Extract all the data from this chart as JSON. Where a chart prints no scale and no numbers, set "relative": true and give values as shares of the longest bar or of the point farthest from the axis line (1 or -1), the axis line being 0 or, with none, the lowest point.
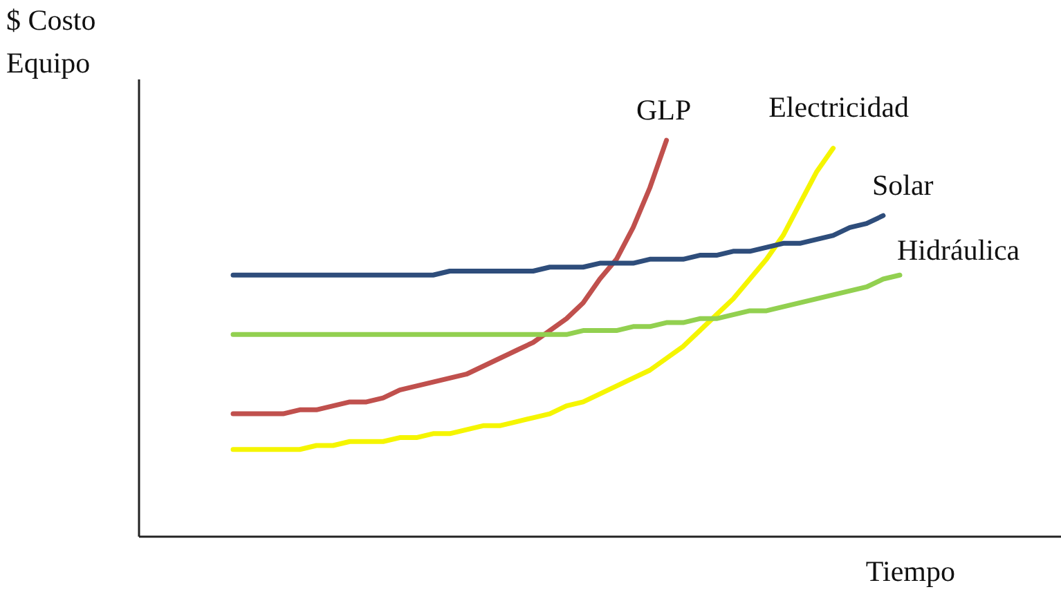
{
  "chart_data": {
    "type": "line",
    "relative": true,
    "xlabel": "Tiempo",
    "ylabel": "$ Costo\nEquipo",
    "grid": false,
    "marker": "none",
    "line_style": "solid",
    "categories": [
      null,
      null,
      null,
      null,
      null,
      null,
      null,
      null,
      null,
      null,
      null,
      null,
      null,
      null,
      null,
      null,
      null,
      null,
      null,
      null,
      null,
      null,
      null,
      null,
      null,
      null,
      null,
      null,
      null,
      null,
      null,
      null,
      null,
      null,
      null,
      null,
      null,
      null,
      null,
      null,
      null
    ],
    "series": [
      {
        "name": "GLP",
        "color": "#c0504d",
        "values": [
          0.31,
          0.31,
          0.31,
          0.31,
          0.32,
          0.32,
          0.33,
          0.34,
          0.34,
          0.35,
          0.37,
          0.38,
          0.39,
          0.4,
          0.41,
          0.43,
          0.45,
          0.47,
          0.49,
          0.52,
          0.55,
          0.59,
          0.65,
          0.7,
          0.78,
          0.88,
          1.0,
          null,
          null,
          null,
          null,
          null,
          null,
          null,
          null,
          null,
          null,
          null,
          null,
          null,
          null
        ]
      },
      {
        "name": "Electricidad",
        "color": "#f5f500",
        "values": [
          0.22,
          0.22,
          0.22,
          0.22,
          0.22,
          0.23,
          0.23,
          0.24,
          0.24,
          0.24,
          0.25,
          0.25,
          0.26,
          0.26,
          0.27,
          0.28,
          0.28,
          0.29,
          0.3,
          0.31,
          0.33,
          0.34,
          0.36,
          0.38,
          0.4,
          0.42,
          0.45,
          0.48,
          0.52,
          0.56,
          0.6,
          0.65,
          0.7,
          0.76,
          0.84,
          0.92,
          0.98,
          null,
          null,
          null,
          null
        ]
      },
      {
        "name": "Solar",
        "color": "#2e4d7b",
        "values": [
          0.66,
          0.66,
          0.66,
          0.66,
          0.66,
          0.66,
          0.66,
          0.66,
          0.66,
          0.66,
          0.66,
          0.66,
          0.66,
          0.67,
          0.67,
          0.67,
          0.67,
          0.67,
          0.67,
          0.68,
          0.68,
          0.68,
          0.69,
          0.69,
          0.69,
          0.7,
          0.7,
          0.7,
          0.71,
          0.71,
          0.72,
          0.72,
          0.73,
          0.74,
          0.74,
          0.75,
          0.76,
          0.78,
          0.79,
          0.81,
          null
        ]
      },
      {
        "name": "Hidráulica",
        "color": "#92d050",
        "values": [
          0.51,
          0.51,
          0.51,
          0.51,
          0.51,
          0.51,
          0.51,
          0.51,
          0.51,
          0.51,
          0.51,
          0.51,
          0.51,
          0.51,
          0.51,
          0.51,
          0.51,
          0.51,
          0.51,
          0.51,
          0.51,
          0.52,
          0.52,
          0.52,
          0.53,
          0.53,
          0.54,
          0.54,
          0.55,
          0.55,
          0.56,
          0.57,
          0.57,
          0.58,
          0.59,
          0.6,
          0.61,
          0.62,
          0.63,
          0.65,
          0.66
        ]
      }
    ]
  }
}
